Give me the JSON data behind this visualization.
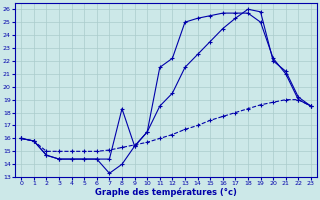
{
  "title": "Graphe des températures (°c)",
  "xlim": [
    -0.5,
    23.5
  ],
  "ylim": [
    13,
    26.5
  ],
  "xticks": [
    0,
    1,
    2,
    3,
    4,
    5,
    6,
    7,
    8,
    9,
    10,
    11,
    12,
    13,
    14,
    15,
    16,
    17,
    18,
    19,
    20,
    21,
    22,
    23
  ],
  "yticks": [
    13,
    14,
    15,
    16,
    17,
    18,
    19,
    20,
    21,
    22,
    23,
    24,
    25,
    26
  ],
  "bg_color": "#cce8e8",
  "line_color": "#0000aa",
  "grid_color": "#aacccc",
  "curve1_x": [
    0,
    1,
    2,
    3,
    4,
    5,
    6,
    7,
    8,
    9,
    10,
    11,
    12,
    13,
    14,
    15,
    16,
    17,
    18,
    19,
    20,
    21,
    22,
    23
  ],
  "curve1_y": [
    16.0,
    15.8,
    14.7,
    14.4,
    14.4,
    14.4,
    14.4,
    13.3,
    14.0,
    15.4,
    16.5,
    21.5,
    22.2,
    25.0,
    25.3,
    25.5,
    25.7,
    25.7,
    25.7,
    25.0,
    22.2,
    21.0,
    19.0,
    18.5
  ],
  "curve2_x": [
    0,
    1,
    2,
    3,
    4,
    5,
    6,
    7,
    8,
    9,
    10,
    11,
    12,
    13,
    14,
    15,
    16,
    17,
    18,
    19,
    20,
    21,
    22,
    23
  ],
  "curve2_y": [
    16.0,
    15.8,
    14.7,
    14.4,
    14.4,
    14.4,
    14.4,
    14.4,
    18.3,
    15.4,
    16.5,
    18.5,
    19.5,
    21.5,
    22.5,
    23.5,
    24.5,
    25.3,
    26.0,
    25.8,
    22.0,
    21.2,
    19.2,
    18.5
  ],
  "curve3_x": [
    0,
    1,
    2,
    3,
    4,
    5,
    6,
    7,
    8,
    9,
    10,
    11,
    12,
    13,
    14,
    15,
    16,
    17,
    18,
    19,
    20,
    21,
    22,
    23
  ],
  "curve3_y": [
    16.0,
    15.8,
    15.0,
    15.0,
    15.0,
    15.0,
    15.0,
    15.1,
    15.3,
    15.5,
    15.7,
    16.0,
    16.3,
    16.7,
    17.0,
    17.4,
    17.7,
    18.0,
    18.3,
    18.6,
    18.8,
    19.0,
    19.0,
    18.5
  ]
}
